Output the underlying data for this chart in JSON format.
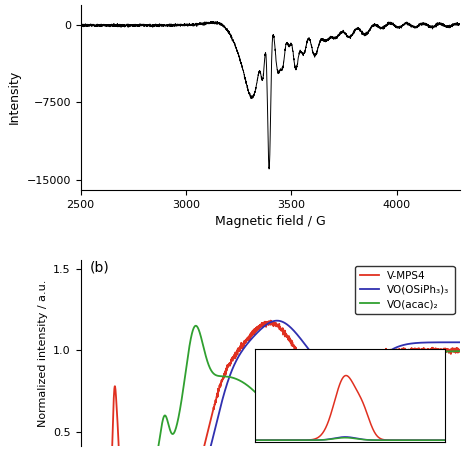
{
  "panel_a": {
    "xlabel": "Magnetic field / G",
    "ylabel": "Intensity",
    "xlim": [
      2500,
      4300
    ],
    "ylim": [
      -16000,
      2000
    ],
    "yticks": [
      0,
      -7500,
      -15000
    ],
    "xticks": [
      2500,
      3000,
      3500,
      4000
    ],
    "color": "#000000"
  },
  "panel_b": {
    "label": "(b)",
    "ylabel": "Normalized intensity / a.u.",
    "ylim": [
      0.42,
      1.55
    ],
    "yticks": [
      0.5,
      1.0,
      1.5
    ],
    "colors": {
      "vmps4": "#e03020",
      "vosiph3": "#3030b0",
      "voacac": "#30a030"
    },
    "legend": [
      "V-MPS4",
      "VO(OSiPh₃)₃",
      "VO(acac)₂"
    ]
  },
  "background_color": "#ffffff"
}
